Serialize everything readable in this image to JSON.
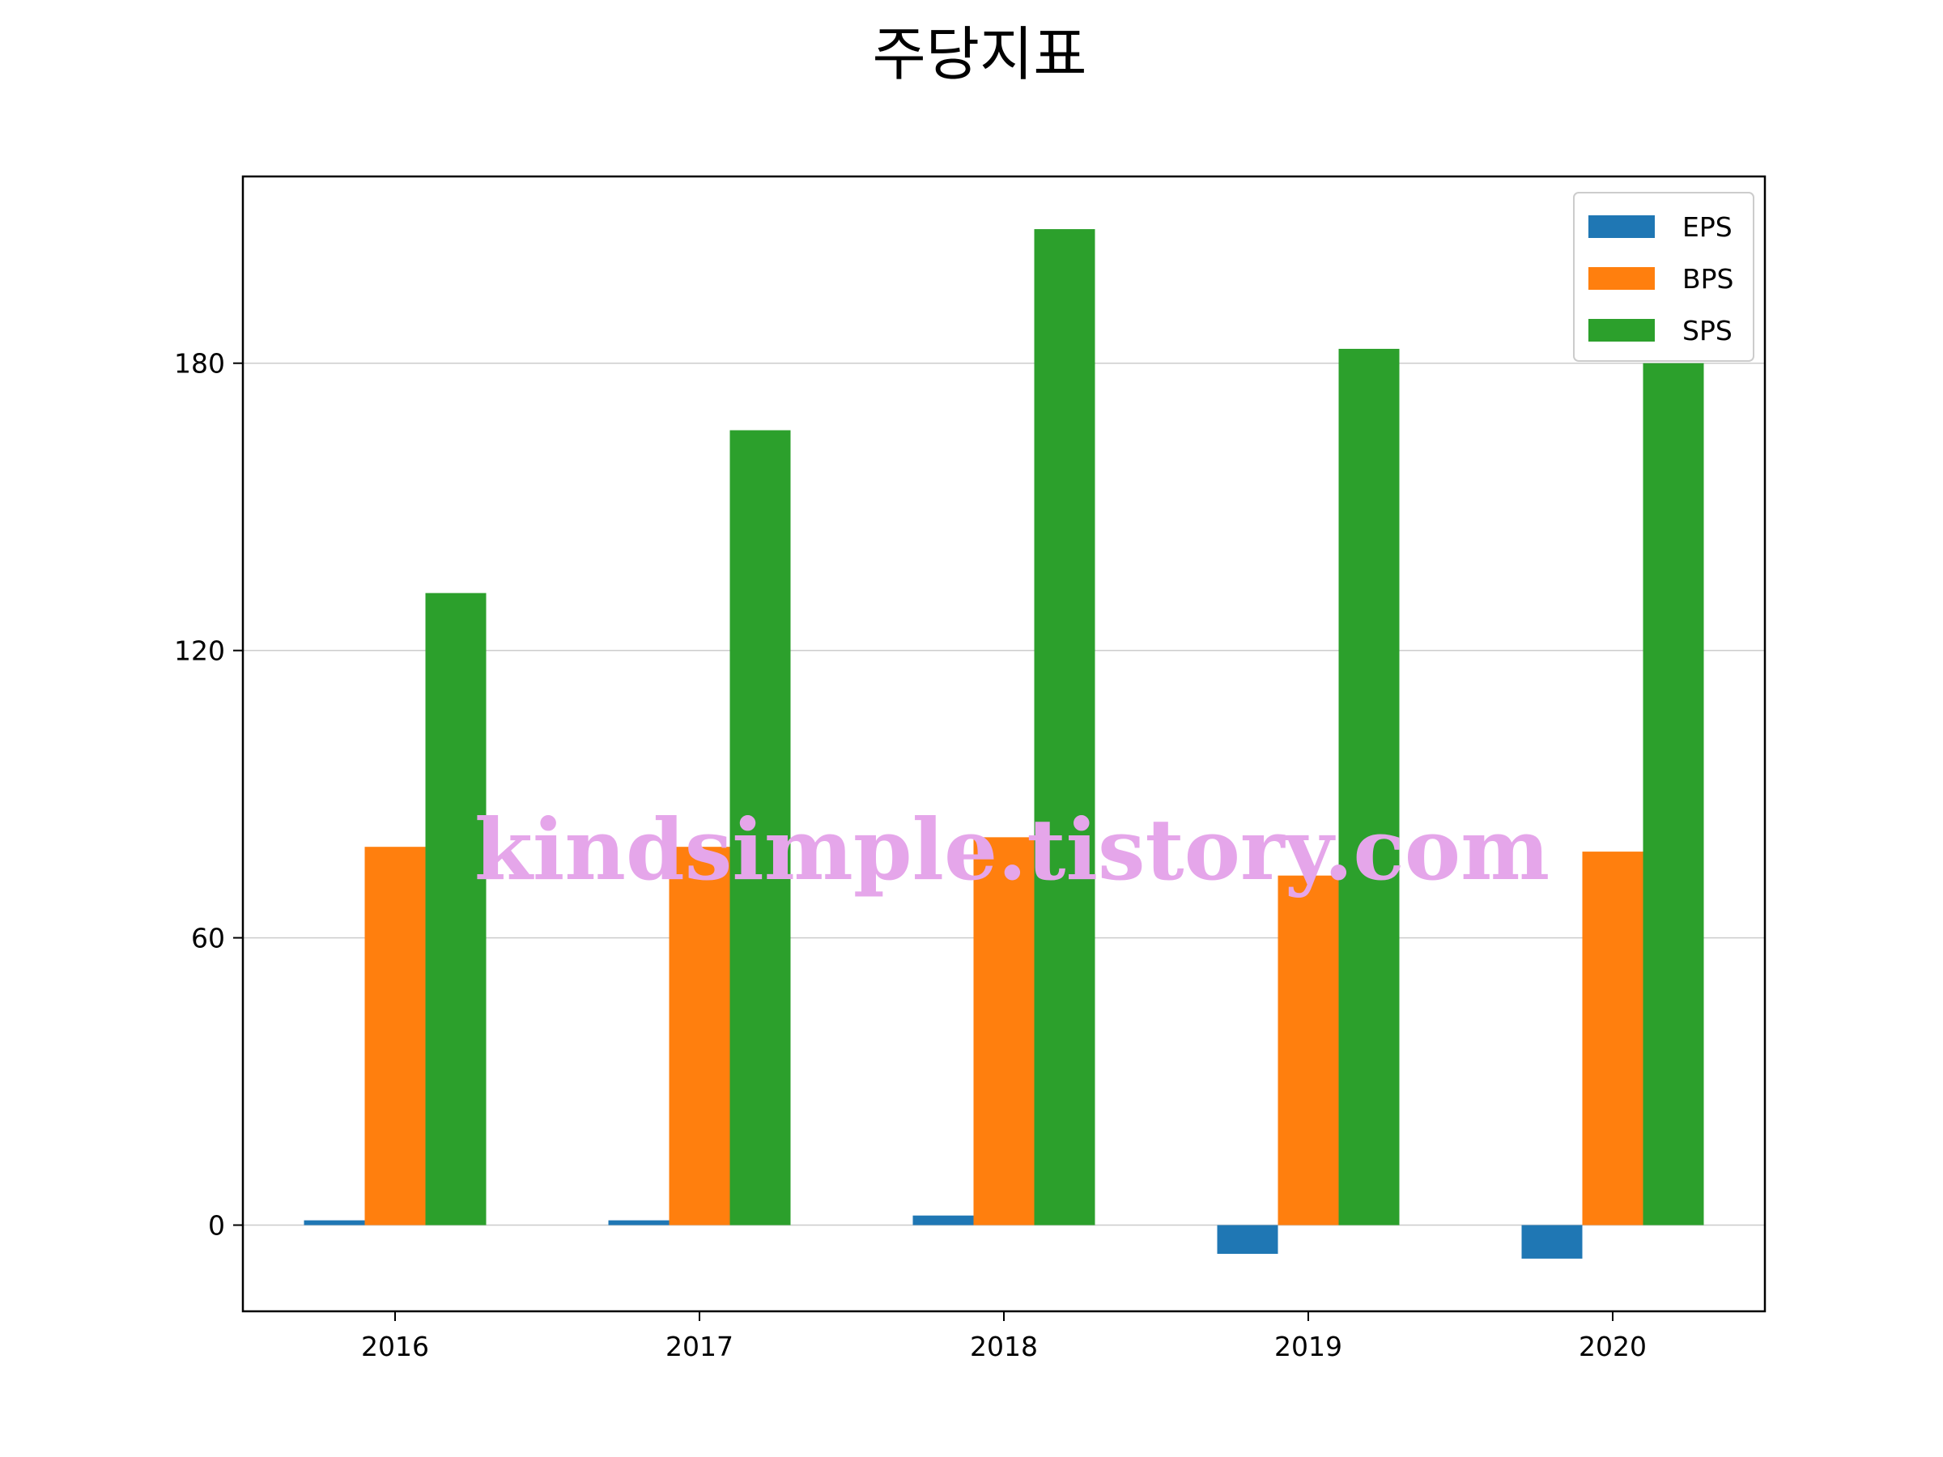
{
  "chart_data": {
    "type": "bar",
    "title": "주당지표",
    "categories": [
      "2016",
      "2017",
      "2018",
      "2019",
      "2020"
    ],
    "series": [
      {
        "name": "EPS",
        "color": "#1f77b4",
        "values": [
          1,
          1,
          2,
          -6,
          -7
        ]
      },
      {
        "name": "BPS",
        "color": "#ff7f0e",
        "values": [
          79,
          79,
          81,
          73,
          78
        ]
      },
      {
        "name": "SPS",
        "color": "#2ca02c",
        "values": [
          132,
          166,
          208,
          183,
          180
        ]
      }
    ],
    "yticks": [
      0,
      60,
      120,
      180
    ],
    "ylim": [
      -18,
      219
    ],
    "grid": "horizontal",
    "legend_position": "top-right",
    "watermark": "kindsimple.tistory.com"
  }
}
